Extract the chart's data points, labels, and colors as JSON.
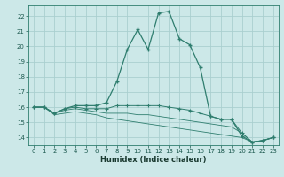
{
  "xlabel": "Humidex (Indice chaleur)",
  "background_color": "#cce8e8",
  "grid_color": "#aacfcf",
  "line_color": "#2e7d6e",
  "xlim": [
    -0.5,
    23.5
  ],
  "ylim": [
    13.5,
    22.7
  ],
  "xticks": [
    0,
    1,
    2,
    3,
    4,
    5,
    6,
    7,
    8,
    9,
    10,
    11,
    12,
    13,
    14,
    15,
    16,
    17,
    18,
    19,
    20,
    21,
    22,
    23
  ],
  "yticks": [
    14,
    15,
    16,
    17,
    18,
    19,
    20,
    21,
    22
  ],
  "curve1_x": [
    0,
    1,
    2,
    3,
    4,
    5,
    6,
    7,
    8,
    9,
    10,
    11,
    12,
    13,
    14,
    15,
    16,
    17,
    18,
    19,
    20,
    21,
    22,
    23
  ],
  "curve1_y": [
    16.0,
    16.0,
    15.6,
    15.9,
    16.1,
    16.1,
    16.1,
    16.3,
    17.7,
    19.8,
    21.1,
    19.8,
    22.2,
    22.3,
    20.5,
    20.1,
    18.6,
    15.4,
    15.2,
    15.2,
    14.1,
    13.7,
    13.8,
    14.0
  ],
  "curve2_x": [
    0,
    1,
    2,
    3,
    4,
    5,
    6,
    7,
    8,
    9,
    10,
    11,
    12,
    13,
    14,
    15,
    16,
    17,
    18,
    19,
    20,
    21,
    22,
    23
  ],
  "curve2_y": [
    16.0,
    16.0,
    15.6,
    15.9,
    16.0,
    15.9,
    15.9,
    15.9,
    16.1,
    16.1,
    16.1,
    16.1,
    16.1,
    16.0,
    15.9,
    15.8,
    15.6,
    15.4,
    15.2,
    15.2,
    14.3,
    13.7,
    13.8,
    14.0
  ],
  "curve3_x": [
    0,
    1,
    2,
    3,
    4,
    5,
    6,
    7,
    8,
    9,
    10,
    11,
    12,
    13,
    14,
    15,
    16,
    17,
    18,
    19,
    20,
    21,
    22,
    23
  ],
  "curve3_y": [
    16.0,
    16.0,
    15.6,
    15.8,
    15.9,
    15.8,
    15.7,
    15.6,
    15.6,
    15.6,
    15.5,
    15.5,
    15.4,
    15.3,
    15.2,
    15.1,
    15.0,
    14.9,
    14.8,
    14.7,
    14.3,
    13.7,
    13.8,
    14.0
  ],
  "curve4_x": [
    0,
    1,
    2,
    3,
    4,
    5,
    6,
    7,
    8,
    9,
    10,
    11,
    12,
    13,
    14,
    15,
    16,
    17,
    18,
    19,
    20,
    21,
    22,
    23
  ],
  "curve4_y": [
    16.0,
    16.0,
    15.5,
    15.6,
    15.7,
    15.6,
    15.5,
    15.3,
    15.2,
    15.1,
    15.0,
    14.9,
    14.8,
    14.7,
    14.6,
    14.5,
    14.4,
    14.3,
    14.2,
    14.1,
    14.0,
    13.7,
    13.8,
    14.0
  ]
}
